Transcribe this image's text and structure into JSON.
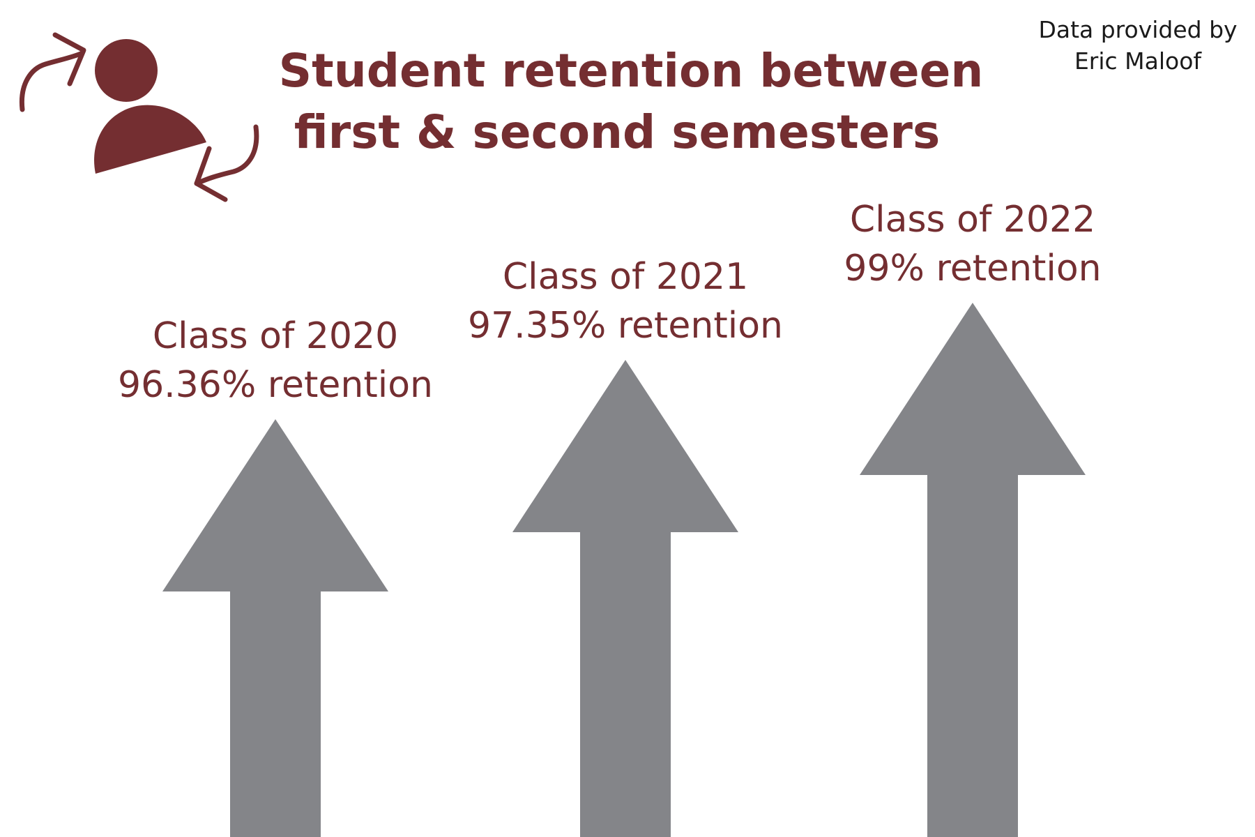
{
  "colors": {
    "accent": "#742e31",
    "arrow": "#848589",
    "credit_text": "#1a1a1a",
    "background": "#ffffff"
  },
  "header": {
    "title_line1": "Student retention between",
    "title_line2": "first & second semesters",
    "credit_line1": "Data provided by",
    "credit_line2": "Eric Maloof",
    "icon": "user-retention-icon"
  },
  "chart_data": {
    "type": "bar",
    "mark": "arrow",
    "title": "Student retention between first & second semesters",
    "categories": [
      "Class of 2020",
      "Class of 2021",
      "Class of 2022"
    ],
    "values": [
      96.36,
      97.35,
      99
    ],
    "value_labels": [
      "96.36% retention",
      "97.35% retention",
      "99% retention"
    ],
    "unit": "%",
    "axes_shown": false,
    "grid": false,
    "legend": "none"
  }
}
